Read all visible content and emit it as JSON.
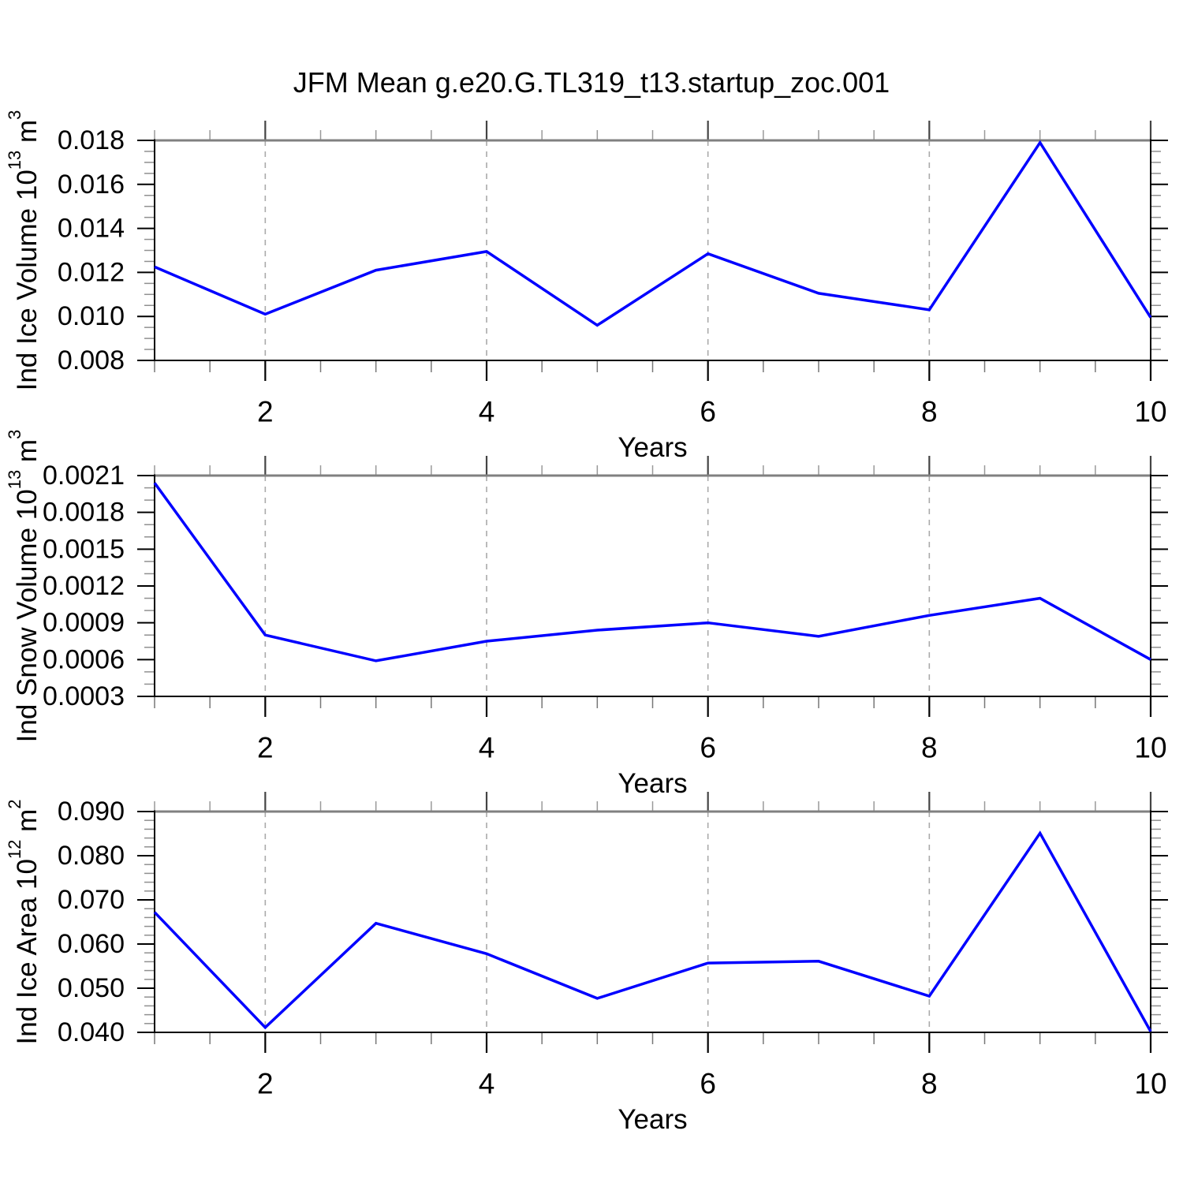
{
  "title": "JFM Mean g.e20.G.TL319_t13.startup_zoc.001",
  "colors": {
    "line": "#0000ff",
    "grid": "#aaaaaa",
    "frame": "#000000",
    "frame_top": "#808080",
    "tick_major": "#000000",
    "tick_minor": "#909090",
    "text": "#000000"
  },
  "chart_data": [
    {
      "type": "line",
      "title": "",
      "xlabel": "Years",
      "ylabel": "Ind Ice Volume 10^13 m^3",
      "x": [
        1,
        2,
        3,
        4,
        5,
        6,
        7,
        8,
        9,
        10
      ],
      "values": [
        0.01225,
        0.0101,
        0.0121,
        0.01295,
        0.0096,
        0.01285,
        0.01105,
        0.0103,
        0.0179,
        0.00995
      ],
      "xlim": [
        1,
        10
      ],
      "ylim": [
        0.008,
        0.018
      ],
      "xtick_values": [
        2,
        4,
        6,
        8,
        10
      ],
      "xtick_labels": [
        "2",
        "4",
        "6",
        "8",
        "10"
      ],
      "x_minor_step": 0.5,
      "ytick_values": [
        0.008,
        0.01,
        0.012,
        0.014,
        0.016,
        0.018
      ],
      "ytick_labels": [
        "0.008",
        "0.010",
        "0.012",
        "0.014",
        "0.016",
        "0.018"
      ],
      "y_minor_step": 0.0005,
      "grid_x": [
        2,
        4,
        6,
        8
      ],
      "grid_style": "dashed-vertical",
      "legend": "none",
      "line_color": "#0000ff"
    },
    {
      "type": "line",
      "title": "",
      "xlabel": "Years",
      "ylabel": "Ind Snow Volume 10^13 m^3",
      "x": [
        1,
        2,
        3,
        4,
        5,
        6,
        7,
        8,
        9,
        10
      ],
      "values": [
        0.00204,
        0.0008,
        0.00059,
        0.00075,
        0.00084,
        0.0009,
        0.00079,
        0.00096,
        0.0011,
        0.0006
      ],
      "xlim": [
        1,
        10
      ],
      "ylim": [
        0.0003,
        0.0021
      ],
      "xtick_values": [
        2,
        4,
        6,
        8,
        10
      ],
      "xtick_labels": [
        "2",
        "4",
        "6",
        "8",
        "10"
      ],
      "x_minor_step": 0.5,
      "ytick_values": [
        0.0003,
        0.0006,
        0.0009,
        0.0012,
        0.0015,
        0.0018,
        0.0021
      ],
      "ytick_labels": [
        "0.0003",
        "0.0006",
        "0.0009",
        "0.0012",
        "0.0015",
        "0.0018",
        "0.0021"
      ],
      "y_minor_step": 0.0001,
      "grid_x": [
        2,
        4,
        6,
        8
      ],
      "grid_style": "dashed-vertical",
      "legend": "none",
      "line_color": "#0000ff"
    },
    {
      "type": "line",
      "title": "",
      "xlabel": "Years",
      "ylabel": "Ind Ice Area 10^12 m^2",
      "x": [
        1,
        2,
        3,
        4,
        5,
        6,
        7,
        8,
        9,
        10
      ],
      "values": [
        0.0672,
        0.0411,
        0.0647,
        0.0578,
        0.0477,
        0.0557,
        0.0561,
        0.0482,
        0.0851,
        0.0402
      ],
      "xlim": [
        1,
        10
      ],
      "ylim": [
        0.04,
        0.09
      ],
      "xtick_values": [
        2,
        4,
        6,
        8,
        10
      ],
      "xtick_labels": [
        "2",
        "4",
        "6",
        "8",
        "10"
      ],
      "x_minor_step": 0.5,
      "ytick_values": [
        0.04,
        0.05,
        0.06,
        0.07,
        0.08,
        0.09
      ],
      "ytick_labels": [
        "0.040",
        "0.050",
        "0.060",
        "0.070",
        "0.080",
        "0.090"
      ],
      "y_minor_step": 0.002,
      "grid_x": [
        2,
        4,
        6,
        8
      ],
      "grid_style": "dashed-vertical",
      "legend": "none",
      "line_color": "#0000ff"
    }
  ]
}
